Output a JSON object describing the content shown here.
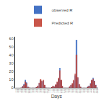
{
  "chart_data": {
    "type": "bar",
    "xlabel": "Days",
    "categories": [
      "1/1/09",
      "2/1/09",
      "3/1/09",
      "4/1/09",
      "5/1/09",
      "6/1/09",
      "7/1/09",
      "8/1/09",
      "9/1/09",
      "10/1/09",
      "11/1/09",
      "12/1/09",
      "1/1/10",
      "2/1/10",
      "3/1/10",
      "4/1/10",
      "5/1/10",
      "6/1/10",
      "7/1/10",
      "8/1/10",
      "9/1/10",
      "10/1/10",
      "11/1/10",
      "12/1/10",
      "1/1/11",
      "2/1/11",
      "3/1/11",
      "4/1/11",
      "5/1/11",
      "6/1/11",
      "7/1/11",
      "8/1/11",
      "9/1/11",
      "10/1/11",
      "11/1/11",
      "12/1/11",
      "1/1/12",
      "2/1/12",
      "3/1/12",
      "4/1/12",
      "5/1/12",
      "6/1/12",
      "7/1/12",
      "8/1/12",
      "9/1/12",
      "10/1/12",
      "11/1/12",
      "12/1/12",
      "1/1/13",
      "2/1/13",
      "3/1/13",
      "4/1/13",
      "5/1/13",
      "6/1/13",
      "7/1/13",
      "8/1/13",
      "9/1/13",
      "10/1/13",
      "11/1/13",
      "12/1/13"
    ],
    "series": [
      {
        "name": "observed R",
        "color": "#4472c4",
        "values": [
          0.1,
          0.1,
          0.1,
          0.1,
          0.2,
          2.0,
          4.5,
          9.5,
          6.5,
          1.2,
          0.2,
          0.1,
          0.1,
          0.1,
          0.1,
          0.8,
          2.0,
          5.5,
          9.0,
          7.5,
          8.5,
          3.0,
          0.2,
          0.1,
          0.1,
          0.1,
          0.8,
          1.8,
          1.2,
          3.5,
          6.5,
          11.0,
          24.0,
          9.0,
          2.0,
          0.1,
          0.1,
          0.1,
          0.1,
          1.2,
          3.0,
          4.5,
          8.5,
          15.0,
          58.0,
          12.0,
          4.0,
          1.0,
          0.1,
          0.1,
          0.1,
          0.1,
          1.2,
          2.5,
          5.5,
          9.5,
          12.0,
          8.5,
          3.5,
          0.2
        ]
      },
      {
        "name": "Predicted R",
        "color": "#c0392b",
        "values": [
          0.1,
          0.1,
          0.1,
          0.1,
          0.2,
          1.5,
          3.5,
          7.5,
          5.5,
          1.0,
          0.2,
          0.1,
          0.1,
          0.1,
          0.1,
          0.9,
          2.5,
          6.0,
          10.5,
          8.5,
          9.5,
          3.5,
          0.3,
          0.1,
          0.1,
          0.1,
          0.9,
          2.0,
          1.5,
          4.0,
          7.5,
          12.0,
          21.0,
          9.5,
          2.2,
          0.1,
          0.1,
          0.1,
          0.1,
          1.4,
          3.5,
          5.5,
          9.5,
          17.0,
          40.0,
          13.0,
          4.5,
          1.2,
          0.1,
          0.1,
          0.1,
          0.1,
          1.0,
          2.0,
          5.0,
          9.0,
          11.0,
          8.0,
          3.0,
          0.1
        ]
      }
    ],
    "ylim": [
      0,
      62
    ],
    "yticks": [
      0,
      10,
      20,
      30,
      40,
      50,
      60
    ],
    "grid": false,
    "legend": "upper center"
  }
}
